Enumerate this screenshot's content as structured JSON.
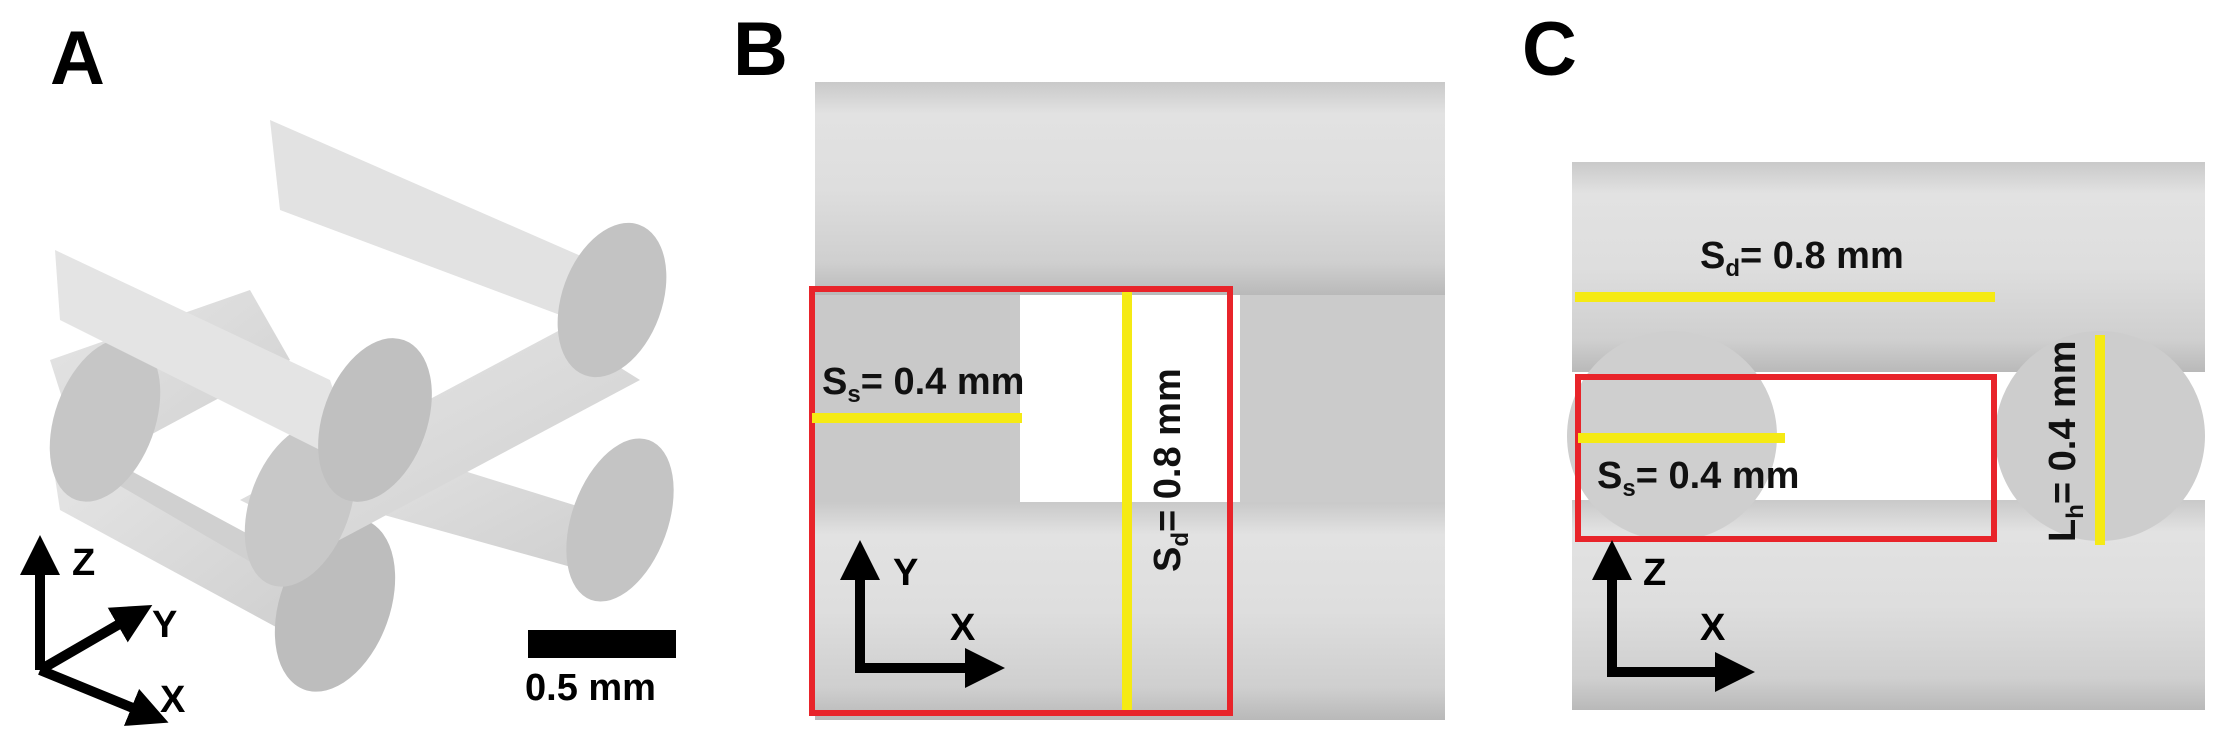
{
  "panels": {
    "a": {
      "letter": "A",
      "axes": {
        "z": "Z",
        "y": "Y",
        "x": "X"
      },
      "scale_bar_label": "0.5 mm"
    },
    "b": {
      "letter": "B",
      "axes": {
        "y": "Y",
        "x": "X"
      },
      "ss_label": {
        "main": "S",
        "sub": "s",
        "value": "= 0.4 mm"
      },
      "sd_label": {
        "main": "S",
        "sub": "d",
        "value": "= 0.8 mm"
      }
    },
    "c": {
      "letter": "C",
      "axes": {
        "z": "Z",
        "x": "X"
      },
      "sd_label": {
        "main": "S",
        "sub": "d",
        "value": "= 0.8 mm"
      },
      "ss_label": {
        "main": "S",
        "sub": "s",
        "value": "= 0.4 mm"
      },
      "lh_label": {
        "main": "L",
        "sub": "h",
        "value": "= 0.4 mm"
      }
    }
  },
  "colors": {
    "highlight_box": "#e8242a",
    "dimension_line": "#f5ea14",
    "cylinder": "#d6d6d6",
    "background": "#ffffff"
  }
}
